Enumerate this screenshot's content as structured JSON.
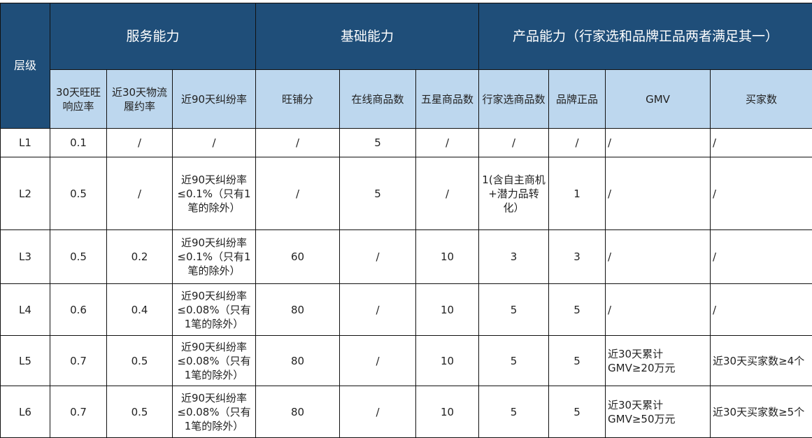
{
  "colors": {
    "header_dark": "#1f4e79",
    "header_light": "#bdd7ee"
  },
  "header": {
    "level": "层级",
    "groups": [
      "服务能力",
      "基础能力",
      "产品能力（行家选和品牌正品两者满足其一）"
    ],
    "columns": [
      "30天旺旺响应率",
      "近30天物流履约率",
      "近90天纠纷率",
      "旺铺分",
      "在线商品数",
      "五星商品数",
      "行家选商品数",
      "品牌正品",
      "GMV",
      "买家数"
    ]
  },
  "rows": [
    [
      "L1",
      "0.1",
      "/",
      "/",
      "/",
      "5",
      "/",
      "/",
      "/",
      "/",
      "/"
    ],
    [
      "L2",
      "0.5",
      "/",
      "近90天纠纷率≤0.1%（只有1笔的除外）",
      "/",
      "5",
      "/",
      "1(含自主商机+潜力品转化）",
      "1",
      "/",
      "/"
    ],
    [
      "L3",
      "0.5",
      "0.2",
      "近90天纠纷率≤0.1%（只有1笔的除外）",
      "60",
      "/",
      "10",
      "3",
      "3",
      "/",
      "/"
    ],
    [
      "L4",
      "0.6",
      "0.4",
      "近90天纠纷率≤0.08%（只有1笔的除外）",
      "80",
      "/",
      "10",
      "5",
      "5",
      "/",
      "/"
    ],
    [
      "L5",
      "0.7",
      "0.5",
      "近90天纠纷率≤0.08%（只有1笔的除外）",
      "80",
      "/",
      "10",
      "5",
      "5",
      "近30天累计GMV≥20万元",
      "近30天买家数≥4个"
    ],
    [
      "L6",
      "0.7",
      "0.5",
      "近90天纠纷率≤0.08%（只有1笔的除外）",
      "80",
      "/",
      "10",
      "5",
      "5",
      "近30天累计GMV≥50万元",
      "近30天买家数≥5个"
    ]
  ]
}
